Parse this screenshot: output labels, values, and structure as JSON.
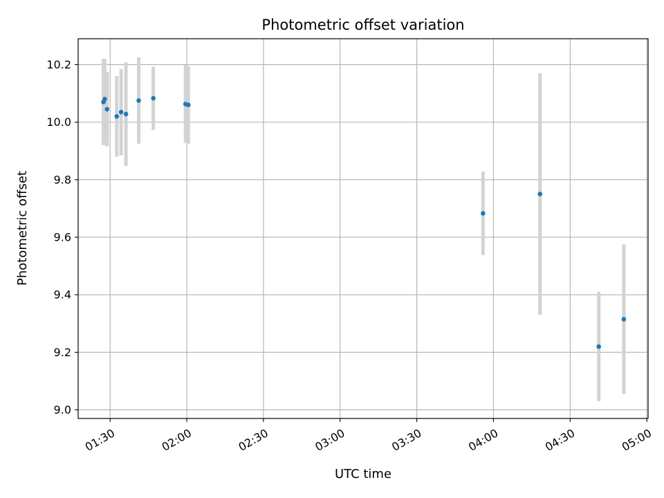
{
  "chart_data": {
    "type": "scatter",
    "title": "Photometric offset variation",
    "xlabel": "UTC time",
    "ylabel": "Photometric offset",
    "x_unit": "minutes since 00:00 UTC",
    "xlim": [
      77.5,
      300.5
    ],
    "ylim": [
      8.97,
      10.29
    ],
    "grid": true,
    "x_ticks": [
      {
        "value": 90,
        "label": "01:30"
      },
      {
        "value": 120,
        "label": "02:00"
      },
      {
        "value": 150,
        "label": "02:30"
      },
      {
        "value": 180,
        "label": "03:00"
      },
      {
        "value": 210,
        "label": "03:30"
      },
      {
        "value": 240,
        "label": "04:00"
      },
      {
        "value": 270,
        "label": "04:30"
      },
      {
        "value": 300,
        "label": "05:00"
      }
    ],
    "y_ticks": [
      {
        "value": 9.0,
        "label": "9.0"
      },
      {
        "value": 9.2,
        "label": "9.2"
      },
      {
        "value": 9.4,
        "label": "9.4"
      },
      {
        "value": 9.6,
        "label": "9.6"
      },
      {
        "value": 9.8,
        "label": "9.8"
      },
      {
        "value": 10.0,
        "label": "10.0"
      },
      {
        "value": 10.2,
        "label": "10.2"
      }
    ],
    "colors": {
      "points": "#1f77b4",
      "error_bars": "#d3d3d3",
      "grid": "#b0b0b0",
      "axes": "#000000"
    },
    "series": [
      {
        "name": "offset",
        "points": [
          {
            "x": 87.4,
            "y": 10.07,
            "err": 0.15
          },
          {
            "x": 87.9,
            "y": 10.08,
            "err": 0.14
          },
          {
            "x": 88.8,
            "y": 10.045,
            "err": 0.13
          },
          {
            "x": 92.6,
            "y": 10.02,
            "err": 0.14
          },
          {
            "x": 94.3,
            "y": 10.035,
            "err": 0.15
          },
          {
            "x": 96.2,
            "y": 10.028,
            "err": 0.18
          },
          {
            "x": 101.2,
            "y": 10.075,
            "err": 0.15
          },
          {
            "x": 106.9,
            "y": 10.083,
            "err": 0.11
          },
          {
            "x": 119.5,
            "y": 10.063,
            "err": 0.135
          },
          {
            "x": 120.6,
            "y": 10.06,
            "err": 0.135
          },
          {
            "x": 235.9,
            "y": 9.683,
            "err": 0.145
          },
          {
            "x": 258.2,
            "y": 9.75,
            "err": 0.42
          },
          {
            "x": 281.2,
            "y": 9.22,
            "err": 0.19
          },
          {
            "x": 291.0,
            "y": 9.315,
            "err": 0.26
          }
        ]
      }
    ]
  }
}
